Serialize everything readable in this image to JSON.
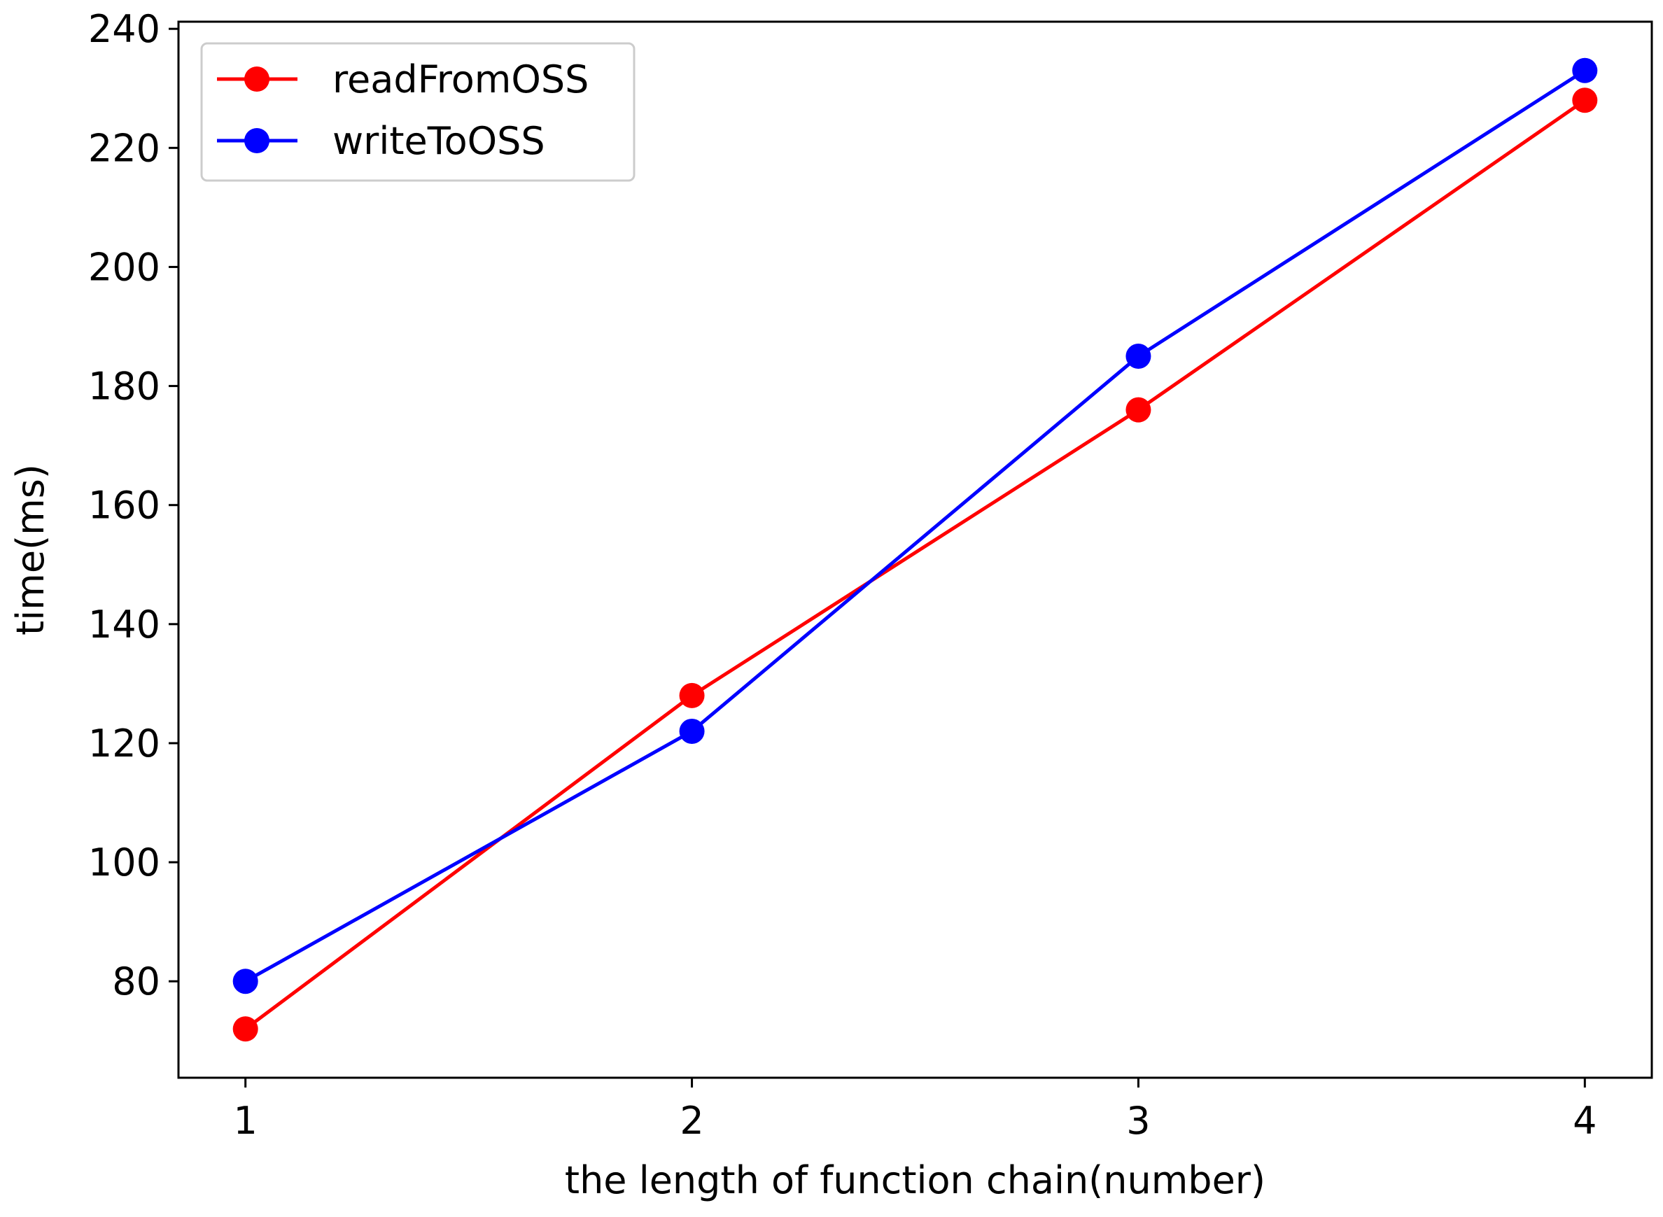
{
  "chart_data": {
    "type": "line",
    "title": "",
    "xlabel": "the length of function chain(number)",
    "ylabel": "time(ms)",
    "x": [
      1,
      2,
      3,
      4
    ],
    "xticks": [
      "1",
      "2",
      "3",
      "4"
    ],
    "xlim": [
      0.85,
      4.15
    ],
    "yticks": [
      "80",
      "100",
      "120",
      "140",
      "160",
      "180",
      "200",
      "220",
      "240"
    ],
    "ylim": [
      63.8,
      241.2
    ],
    "grid": false,
    "legend_position": "top-left",
    "series": [
      {
        "name": "readFromOSS",
        "color": "#ff0000",
        "values": [
          72,
          128,
          176,
          228
        ]
      },
      {
        "name": "writeToOSS",
        "color": "#0000ff",
        "values": [
          80,
          122,
          185,
          233
        ]
      }
    ]
  }
}
